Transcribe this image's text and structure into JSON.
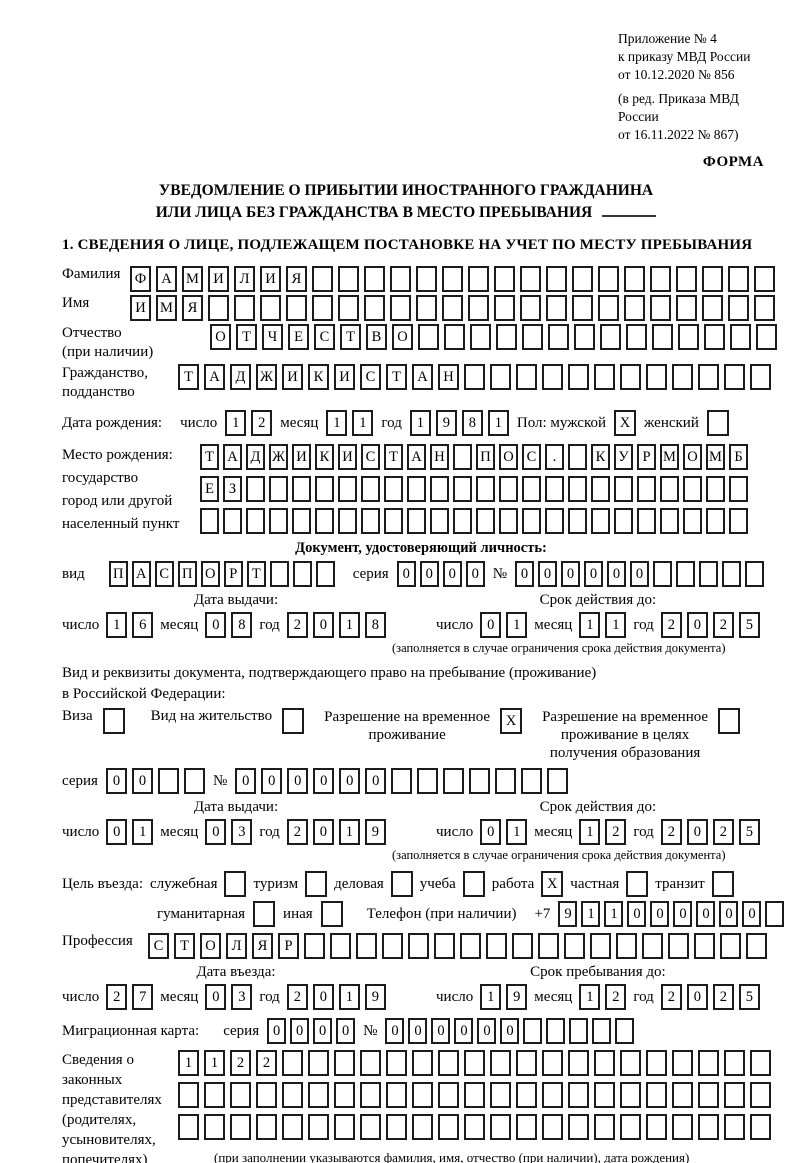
{
  "header": {
    "appendix_lines": [
      "Приложение № 4",
      "к приказу МВД России",
      "от 10.12.2020 № 856"
    ],
    "edition_lines": [
      "(в ред. Приказа МВД России",
      "от 16.11.2022 № 867)"
    ],
    "forma": "ФОРМА"
  },
  "title": {
    "line1": "УВЕДОМЛЕНИЕ О ПРИБЫТИИ ИНОСТРАННОГО ГРАЖДАНИНА",
    "line2": "ИЛИ ЛИЦА БЕЗ ГРАЖДАНСТВА В МЕСТО ПРЕБЫВАНИЯ"
  },
  "section1_heading": "1. СВЕДЕНИЯ О ЛИЦЕ, ПОДЛЕЖАЩЕМ ПОСТАНОВКЕ НА УЧЕТ ПО МЕСТУ ПРЕБЫВАНИЯ",
  "surname": {
    "label": "Фамилия",
    "cells": {
      "value": "ФАМИЛИЯ",
      "length": 25
    }
  },
  "firstname": {
    "label": "Имя",
    "cells": {
      "value": "ИМЯ",
      "length": 25
    }
  },
  "patronymic": {
    "label_line1": "Отчество",
    "label_line2": "(при наличии)",
    "cells": {
      "value": "ОТЧЕСТВО",
      "length": 22
    }
  },
  "citizenship": {
    "label_line1": "Гражданство,",
    "label_line2": "подданство",
    "cells": {
      "value": "ТАДЖИКИСТАН",
      "length": 23
    }
  },
  "birth_date": {
    "label": "Дата рождения:",
    "day_label": "число",
    "day": {
      "value": "12",
      "length": 2
    },
    "month_label": "месяц",
    "month": {
      "value": "11",
      "length": 2
    },
    "year_label": "год",
    "year": {
      "value": "1981",
      "length": 4
    },
    "sex_label": "Пол: мужской",
    "male_check": "X",
    "female_label": "женский",
    "female_check": ""
  },
  "birth_place": {
    "label_lines": [
      "Место рождения:",
      "государство",
      "город или другой",
      "населенный пункт"
    ],
    "row1": {
      "value": "ТАДЖИКИСТАН ПОС. КУРМОМБ",
      "length": 24
    },
    "row2": {
      "value": "ЕЗ",
      "length": 24
    },
    "row3": {
      "value": "",
      "length": 24
    }
  },
  "identity_doc": {
    "heading": "Документ, удостоверяющий личность:",
    "kind_label": "вид",
    "kind": {
      "value": "ПАСПОРТ",
      "length": 10
    },
    "series_label": "серия",
    "series": {
      "value": "0000",
      "length": 4
    },
    "number_label": "№",
    "number": {
      "value": "000000",
      "length": 11
    },
    "issue_heading": "Дата выдачи:",
    "issue": {
      "day_label": "число",
      "day": {
        "value": "16",
        "length": 2
      },
      "month_label": "месяц",
      "month": {
        "value": "08",
        "length": 2
      },
      "year_label": "год",
      "year": {
        "value": "2018",
        "length": 4
      }
    },
    "expiry_heading": "Срок действия до:",
    "expiry": {
      "day_label": "число",
      "day": {
        "value": "01",
        "length": 2
      },
      "month_label": "месяц",
      "month": {
        "value": "11",
        "length": 2
      },
      "year_label": "год",
      "year": {
        "value": "2025",
        "length": 4
      }
    },
    "expiry_note": "(заполняется в случае ограничения срока действия документа)"
  },
  "residence_doc": {
    "intro_line1": "Вид и реквизиты документа, подтверждающего право на пребывание (проживание)",
    "intro_line2": "в Российской Федерации:",
    "visa_label": "Виза",
    "visa_check": "",
    "residence_permit_label": "Вид на жительство",
    "residence_permit_check": "",
    "temp_permit_label_line1": "Разрешение на временное",
    "temp_permit_label_line2": "проживание",
    "temp_permit_check": "X",
    "edu_permit_label_line1": "Разрешение на временное",
    "edu_permit_label_line2": "проживание в целях",
    "edu_permit_label_line3": "получения образования",
    "edu_permit_check": "",
    "series_label": "серия",
    "series": {
      "value": "00",
      "length": 4
    },
    "number_label": "№",
    "number": {
      "value": "000000",
      "length": 13
    },
    "issue_heading": "Дата выдачи:",
    "issue": {
      "day_label": "число",
      "day": {
        "value": "01",
        "length": 2
      },
      "month_label": "месяц",
      "month": {
        "value": "03",
        "length": 2
      },
      "year_label": "год",
      "year": {
        "value": "2019",
        "length": 4
      }
    },
    "expiry_heading": "Срок действия до:",
    "expiry": {
      "day_label": "число",
      "day": {
        "value": "01",
        "length": 2
      },
      "month_label": "месяц",
      "month": {
        "value": "12",
        "length": 2
      },
      "year_label": "год",
      "year": {
        "value": "2025",
        "length": 4
      }
    },
    "expiry_note": "(заполняется в случае ограничения срока действия документа)"
  },
  "purpose": {
    "label": "Цель въезда:",
    "options": [
      {
        "label": "служебная",
        "check": ""
      },
      {
        "label": "туризм",
        "check": ""
      },
      {
        "label": "деловая",
        "check": ""
      },
      {
        "label": "учеба",
        "check": ""
      },
      {
        "label": "работа",
        "check": "X"
      },
      {
        "label": "частная",
        "check": ""
      },
      {
        "label": "транзит",
        "check": ""
      }
    ],
    "options2": [
      {
        "label": "гуманитарная",
        "check": ""
      },
      {
        "label": "иная",
        "check": ""
      }
    ],
    "phone_label": "Телефон (при наличии)",
    "phone_prefix": "+7",
    "phone": {
      "value": "911000000",
      "length": 10
    }
  },
  "profession": {
    "label": "Профессия",
    "cells": {
      "value": "СТОЛЯР",
      "length": 24
    }
  },
  "entry": {
    "date_heading": "Дата въезда:",
    "date": {
      "day_label": "число",
      "day": {
        "value": "27",
        "length": 2
      },
      "month_label": "месяц",
      "month": {
        "value": "03",
        "length": 2
      },
      "year_label": "год",
      "year": {
        "value": "2019",
        "length": 4
      }
    },
    "stay_heading": "Срок пребывания до:",
    "stay": {
      "day_label": "число",
      "day": {
        "value": "19",
        "length": 2
      },
      "month_label": "месяц",
      "month": {
        "value": "12",
        "length": 2
      },
      "year_label": "год",
      "year": {
        "value": "2025",
        "length": 4
      }
    }
  },
  "migration_card": {
    "label": "Миграционная карта:",
    "series_label": "серия",
    "series": {
      "value": "0000",
      "length": 4
    },
    "number_label": "№",
    "number": {
      "value": "000000",
      "length": 11
    }
  },
  "representatives": {
    "label_lines": [
      "Сведения о",
      "законных",
      "представителях",
      "(родителях,",
      "усыновителях,",
      "попечителях)"
    ],
    "row1": {
      "value": "1122",
      "length": 23
    },
    "row2": {
      "value": "",
      "length": 23
    },
    "row3": {
      "value": "",
      "length": 23
    },
    "note": "(при заполнении указываются фамилия, имя, отчество (при наличии), дата рождения)"
  }
}
